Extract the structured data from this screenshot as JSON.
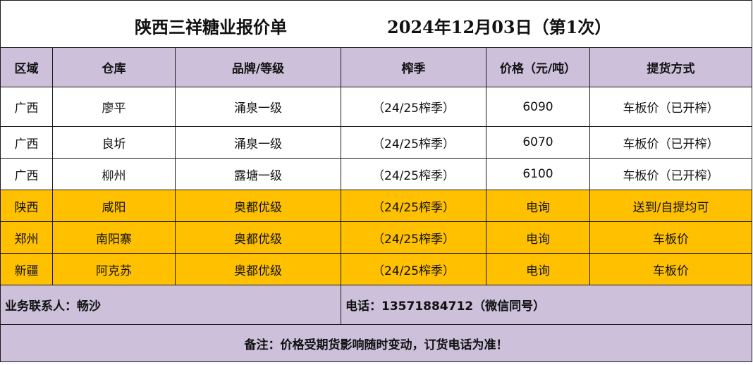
{
  "header": {
    "title": "陕西三祥糖业报价单",
    "date": "2024年12月03日（第1次）"
  },
  "columns": [
    "区域",
    "仓库",
    "品牌/等级",
    "榨季",
    "价格（元/吨）",
    "提货方式"
  ],
  "rows": [
    {
      "region": "广西",
      "warehouse": "廖平",
      "brand": "涌泉一级",
      "season": "（24/25榨季）",
      "price": "6090",
      "delivery": "车板价（已开榨）",
      "highlight": false
    },
    {
      "region": "广西",
      "warehouse": "良圻",
      "brand": "涌泉一级",
      "season": "（24/25榨季）",
      "price": "6070",
      "delivery": "车板价（已开榨）",
      "highlight": false
    },
    {
      "region": "广西",
      "warehouse": "柳州",
      "brand": "露塘一级",
      "season": "（24/25榨季）",
      "price": "6100",
      "delivery": "车板价（已开榨）",
      "highlight": false
    },
    {
      "region": "陕西",
      "warehouse": "咸阳",
      "brand": "奥都优级",
      "season": "（24/25榨季）",
      "price": "电询",
      "delivery": "送到/自提均可",
      "highlight": true
    },
    {
      "region": "郑州",
      "warehouse": "南阳寨",
      "brand": "奥都优级",
      "season": "（24/25榨季）",
      "price": "电询",
      "delivery": "车板价",
      "highlight": true
    },
    {
      "region": "新疆",
      "warehouse": "阿克苏",
      "brand": "奥都优级",
      "season": "（24/25榨季）",
      "price": "电询",
      "delivery": "车板价",
      "highlight": true
    }
  ],
  "contact": {
    "person": "业务联系人：畅沙",
    "phone": "电话：13571884712（微信同号）"
  },
  "note": "备注：价格受期货影响随时变动，订货电话为准！",
  "colors": {
    "header_bg": "#ccc0da",
    "highlight_bg": "#ffc000",
    "plain_bg": "#ffffff"
  }
}
